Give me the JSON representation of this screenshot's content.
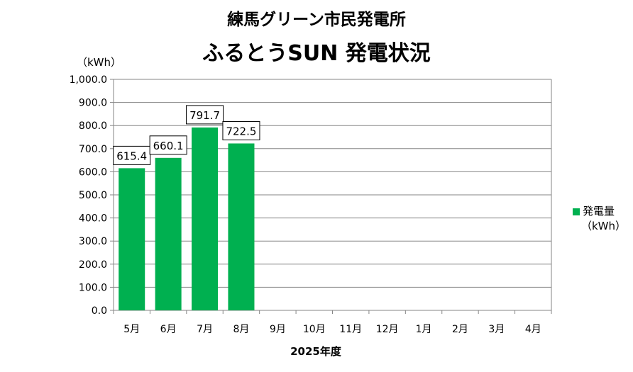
{
  "header": {
    "title_line1": "練馬グリーン市民発電所",
    "title_line2": "ふるとうSUN 発電状況"
  },
  "chart_data": {
    "type": "bar",
    "title": "練馬グリーン市民発電所 ふるとうSUN 発電状況",
    "categories": [
      "5月",
      "6月",
      "7月",
      "8月",
      "9月",
      "10月",
      "11月",
      "12月",
      "1月",
      "2月",
      "3月",
      "4月"
    ],
    "series": [
      {
        "name": "発電量",
        "values": [
          615.4,
          660.1,
          791.7,
          722.5,
          null,
          null,
          null,
          null,
          null,
          null,
          null,
          null
        ],
        "data_labels": [
          "615.4",
          "660.1",
          "791.7",
          "722.5",
          "",
          "",
          "",
          "",
          "",
          "",
          "",
          ""
        ],
        "color": "#00b050"
      }
    ],
    "ylabel": "（kWh）",
    "xlabel": "2025年度",
    "ylim": [
      0,
      1000
    ],
    "yticks": [
      0,
      100,
      200,
      300,
      400,
      500,
      600,
      700,
      800,
      900,
      1000
    ],
    "ytick_labels": [
      "0.0",
      "100.0",
      "200.0",
      "300.0",
      "400.0",
      "500.0",
      "600.0",
      "700.0",
      "800.0",
      "900.0",
      "1,000.0"
    ],
    "grid": true,
    "legend_position": "right",
    "legend_label_line1": "発電量",
    "legend_label_line2": "（kWh）"
  },
  "colors": {
    "bar": "#00b050",
    "grid": "#868686",
    "axis": "#868686"
  }
}
